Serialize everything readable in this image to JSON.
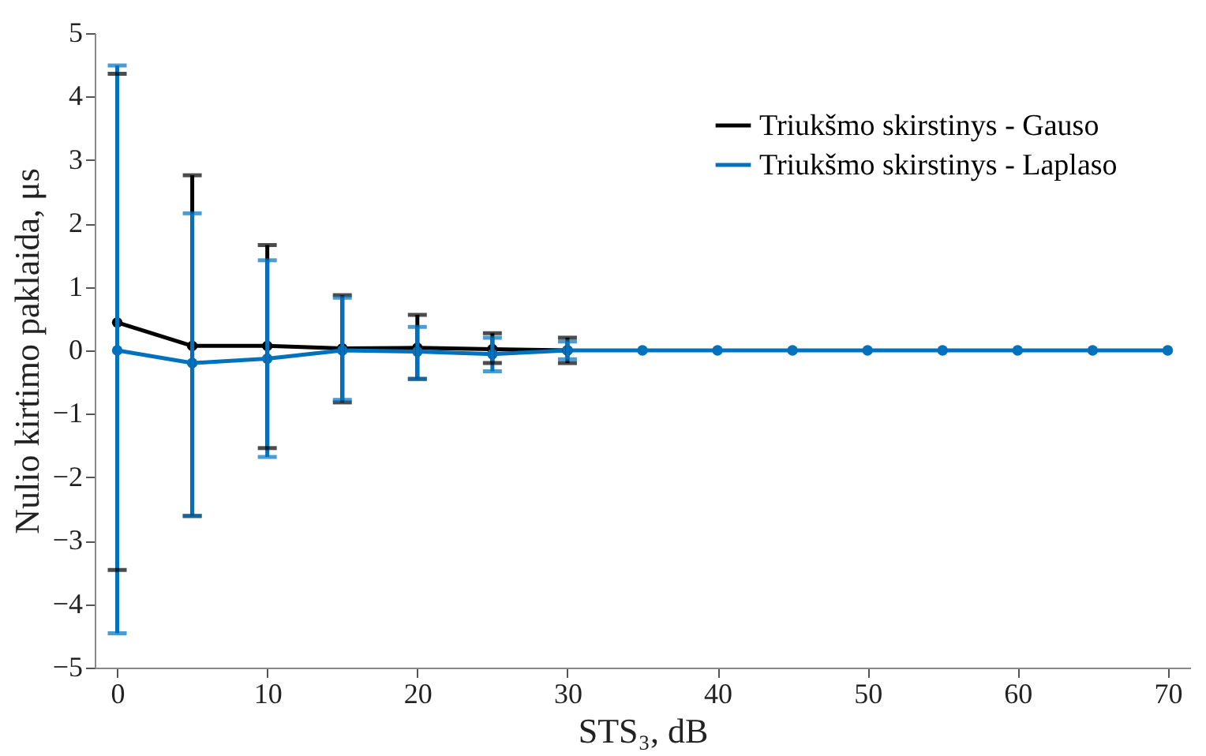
{
  "chart_data": {
    "type": "line",
    "xlabel": "STS₃, dB",
    "ylabel": "Nulio kirtimo paklaida, μs",
    "x": [
      0,
      5,
      10,
      15,
      20,
      25,
      30,
      35,
      40,
      45,
      50,
      55,
      60,
      65,
      70
    ],
    "series": [
      {
        "name": "Triukšmo skirstinys - Gauso",
        "color": "#000000",
        "values": [
          0.44,
          0.07,
          0.07,
          0.03,
          0.04,
          0.02,
          0,
          null,
          null,
          null,
          null,
          null,
          null,
          null,
          null
        ],
        "errors": [
          [
            -3.46,
            4.36
          ],
          [
            -2.61,
            2.76
          ],
          [
            -1.54,
            1.66
          ],
          [
            -0.82,
            0.87
          ],
          [
            -0.45,
            0.56
          ],
          [
            -0.2,
            0.27
          ],
          [
            -0.2,
            0.2
          ],
          null,
          null,
          null,
          null,
          null,
          null,
          null,
          null
        ]
      },
      {
        "name": "Triukšmo skirstinys - Laplaso",
        "color": "#0072bd",
        "values": [
          0,
          -0.2,
          -0.13,
          0,
          -0.02,
          -0.06,
          0,
          0,
          0,
          0,
          0,
          0,
          0,
          0,
          0
        ],
        "errors": [
          [
            -4.46,
            4.49
          ],
          [
            -2.61,
            2.16
          ],
          [
            -1.68,
            1.42
          ],
          [
            -0.78,
            0.83
          ],
          [
            -0.45,
            0.37
          ],
          [
            -0.33,
            0.2
          ],
          [
            -0.14,
            0.14
          ],
          null,
          null,
          null,
          null,
          null,
          null,
          null,
          null
        ]
      }
    ],
    "xlim": [
      -1.5,
      71.5
    ],
    "xticks": [
      0,
      10,
      20,
      30,
      40,
      50,
      60,
      70
    ],
    "ylim": [
      -5,
      5
    ],
    "yticks": [
      -5,
      -4,
      -3,
      -2,
      -1,
      0,
      1,
      2,
      3,
      4,
      5
    ],
    "grid": false,
    "legend": "top right",
    "marker": "circle",
    "line_style": "solid"
  }
}
